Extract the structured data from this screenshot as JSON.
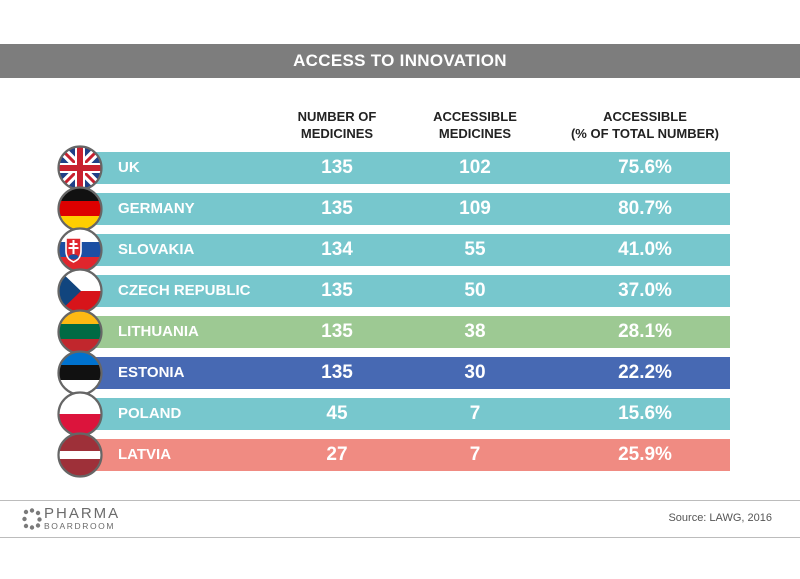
{
  "header": {
    "title": "ACCESS TO INNOVATION"
  },
  "columns": {
    "c1": [
      "NUMBER OF",
      "MEDICINES"
    ],
    "c2": [
      "ACCESSIBLE",
      "MEDICINES"
    ],
    "c3": [
      "ACCESSIBLE",
      "(% OF TOTAL NUMBER)"
    ]
  },
  "chart_data": {
    "type": "table",
    "title": "ACCESS TO INNOVATION",
    "columns": [
      "NUMBER OF MEDICINES",
      "ACCESSIBLE MEDICINES",
      "ACCESSIBLE (% OF TOTAL NUMBER)"
    ],
    "rows": [
      {
        "country": "UK",
        "flag": "uk-flag-icon",
        "total": "135",
        "accessible": "102",
        "pct": "75.6%",
        "color": "#77c7cd"
      },
      {
        "country": "GERMANY",
        "flag": "germany-flag-icon",
        "total": "135",
        "accessible": "109",
        "pct": "80.7%",
        "color": "#77c7cd"
      },
      {
        "country": "SLOVAKIA",
        "flag": "slovakia-flag-icon",
        "total": "134",
        "accessible": "55",
        "pct": "41.0%",
        "color": "#77c7cd"
      },
      {
        "country": "CZECH REPUBLIC",
        "flag": "czech-flag-icon",
        "total": "135",
        "accessible": "50",
        "pct": "37.0%",
        "color": "#77c7cd"
      },
      {
        "country": "LITHUANIA",
        "flag": "lithuania-flag-icon",
        "total": "135",
        "accessible": "38",
        "pct": "28.1%",
        "color": "#9dc993"
      },
      {
        "country": "ESTONIA",
        "flag": "estonia-flag-icon",
        "total": "135",
        "accessible": "30",
        "pct": "22.2%",
        "color": "#4769b3"
      },
      {
        "country": "POLAND",
        "flag": "poland-flag-icon",
        "total": "45",
        "accessible": "7",
        "pct": "15.6%",
        "color": "#77c7cd"
      },
      {
        "country": "LATVIA",
        "flag": "latvia-flag-icon",
        "total": "27",
        "accessible": "7",
        "pct": "25.9%",
        "color": "#f08b82"
      }
    ]
  },
  "footer": {
    "logo_line1": "PHARMA",
    "logo_line2": "BOARDROOM",
    "source": "Source: LAWG, 2016"
  }
}
